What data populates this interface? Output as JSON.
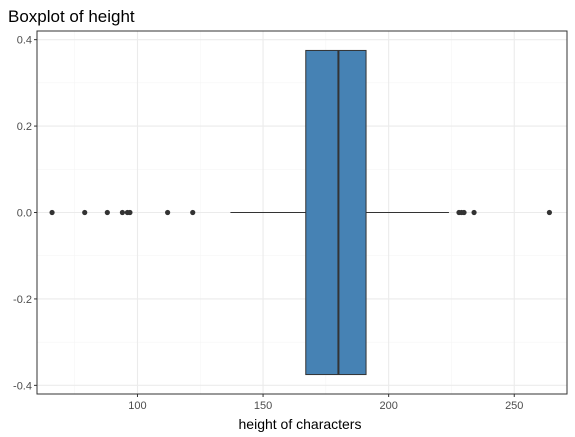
{
  "chart_data": {
    "type": "boxplot",
    "title": "Boxplot of height",
    "xlabel": "height of characters",
    "ylabel": "",
    "xlim": [
      60,
      271
    ],
    "ylim": [
      -0.42,
      0.42
    ],
    "x_ticks": [
      100,
      150,
      200,
      250
    ],
    "x_tick_labels": [
      "100",
      "150",
      "200",
      "250"
    ],
    "y_ticks": [
      -0.4,
      -0.2,
      0.0,
      0.2,
      0.4
    ],
    "y_tick_labels": [
      "-0.4",
      "-0.2",
      "0.0",
      "0.2",
      "0.4"
    ],
    "grid": true,
    "box": {
      "q1": 167,
      "median": 180,
      "q3": 191,
      "whisker_low": 137,
      "whisker_high": 224,
      "y_center": 0.0,
      "y_halfwidth": 0.375
    },
    "outliers": [
      66,
      79,
      88,
      94,
      96,
      97,
      112,
      122,
      228,
      229,
      230,
      234,
      264
    ],
    "colors": {
      "box_fill": "#4682b4",
      "box_stroke": "#333333",
      "outlier": "#333333",
      "grid_major": "#ebebeb",
      "grid_minor": "#f5f5f5",
      "panel_border": "#333333"
    }
  }
}
